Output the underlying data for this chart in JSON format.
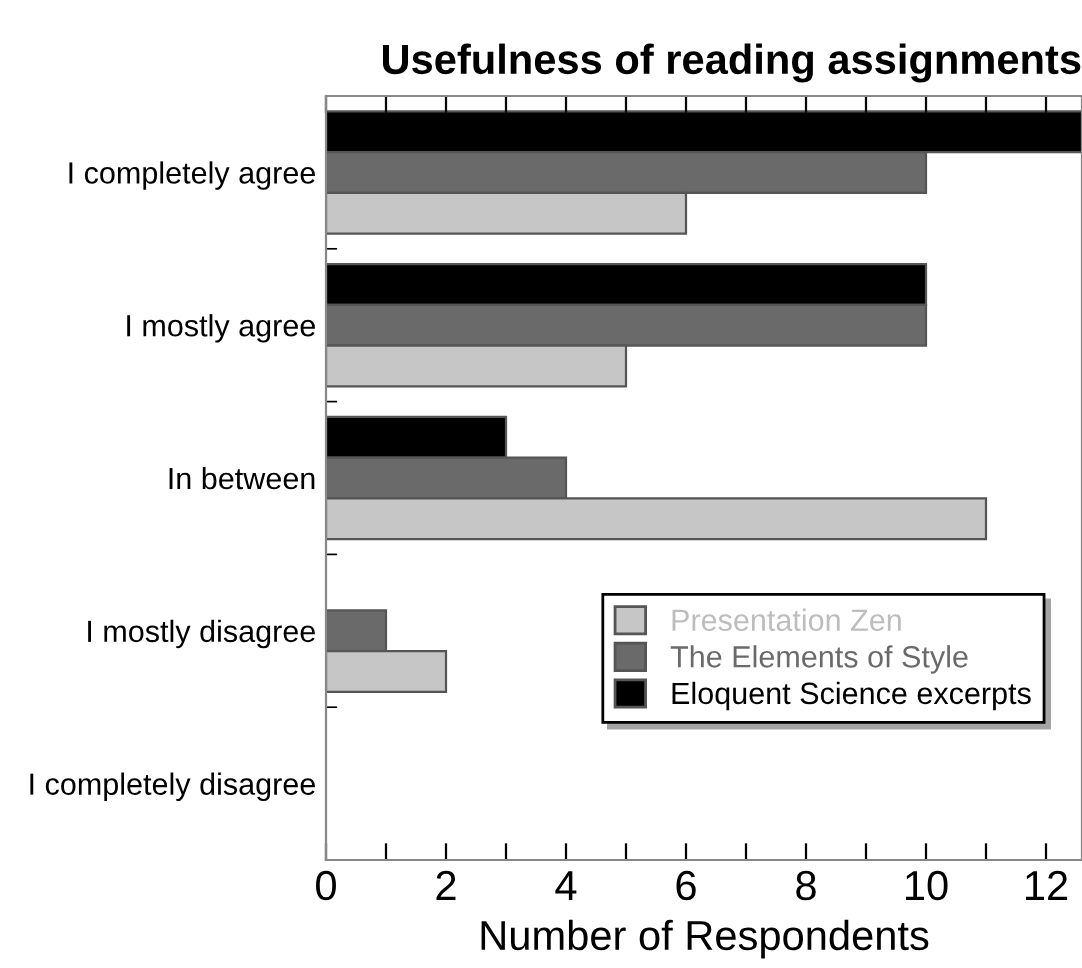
{
  "chart_data": {
    "type": "bar",
    "orientation": "horizontal",
    "title": "Usefulness of reading assignments",
    "xlabel": "Number of Respondents",
    "categories": [
      "I completely agree",
      "I mostly agree",
      "In between",
      "I mostly disagree",
      "I completely disagree"
    ],
    "series": [
      {
        "name": "Eloquent Science excerpts",
        "color": "#000000",
        "values": [
          12.6,
          10,
          3,
          0,
          0
        ]
      },
      {
        "name": "The Elements of Style",
        "color": "#6a6a6a",
        "values": [
          10,
          10,
          4,
          1,
          0
        ]
      },
      {
        "name": "Presentation Zen",
        "color": "#c6c6c6",
        "values": [
          6,
          5,
          11,
          2,
          0
        ]
      }
    ],
    "xlim": [
      0,
      12.6
    ],
    "xticks": [
      0,
      {
        "value": 1,
        "label": null
      },
      2,
      {
        "value": 3,
        "label": null
      },
      4,
      {
        "value": 5,
        "label": null
      },
      6,
      {
        "value": 7,
        "label": null
      },
      8,
      {
        "value": 9,
        "label": null
      },
      10,
      {
        "value": 11,
        "label": null
      },
      12
    ],
    "grid": false,
    "legend": "bottom right"
  }
}
